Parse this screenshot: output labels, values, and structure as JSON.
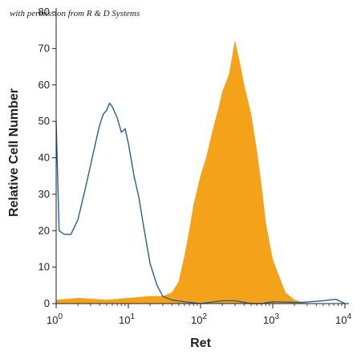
{
  "credit_text": "with permission from R & D Systems",
  "chart_data": {
    "type": "area",
    "title": "",
    "xlabel": "Ret",
    "ylabel": "Relative Cell Number",
    "x_scale": "log",
    "xlim": [
      1,
      10000
    ],
    "ylim": [
      0,
      80
    ],
    "grid": false,
    "x_ticks": [
      {
        "value": 1,
        "base": "10",
        "exp": "0"
      },
      {
        "value": 10,
        "base": "10",
        "exp": "1"
      },
      {
        "value": 100,
        "base": "10",
        "exp": "2"
      },
      {
        "value": 1000,
        "base": "10",
        "exp": "3"
      },
      {
        "value": 10000,
        "base": "10",
        "exp": "4"
      }
    ],
    "y_ticks": [
      {
        "value": 0,
        "label": "0"
      },
      {
        "value": 10,
        "label": "10"
      },
      {
        "value": 20,
        "label": "20"
      },
      {
        "value": 30,
        "label": "30"
      },
      {
        "value": 40,
        "label": "40"
      },
      {
        "value": 50,
        "label": "50"
      },
      {
        "value": 60,
        "label": "60"
      },
      {
        "value": 70,
        "label": "70"
      },
      {
        "value": 80,
        "label": "80"
      }
    ],
    "series": [
      {
        "style": "outline",
        "color": "#2a5f8f",
        "x": [
          1,
          1.1,
          1.3,
          1.6,
          2,
          2.5,
          3,
          3.5,
          4,
          4.5,
          5,
          5.5,
          6,
          7,
          8,
          9,
          10,
          12,
          14,
          16,
          20,
          25,
          30,
          40,
          60,
          100,
          200,
          300,
          500,
          700,
          1000,
          2500,
          5000,
          7500,
          10000
        ],
        "y": [
          50,
          20,
          19,
          19,
          23,
          31,
          38,
          44,
          49,
          52,
          53,
          55,
          54,
          51,
          47,
          48,
          44,
          35,
          29,
          22,
          11,
          5,
          2,
          1,
          0.5,
          0,
          0.8,
          0.8,
          0,
          0,
          0.5,
          0.3,
          0.8,
          1.2,
          0
        ]
      },
      {
        "style": "filled",
        "color": "#f5a21b",
        "x": [
          1,
          2,
          5,
          10,
          20,
          30,
          40,
          50,
          60,
          70,
          80,
          100,
          120,
          150,
          180,
          200,
          250,
          300,
          350,
          400,
          500,
          600,
          700,
          800,
          1000,
          1500,
          2000,
          3000,
          10000
        ],
        "y": [
          1,
          1.5,
          1,
          1.5,
          2,
          2,
          3,
          6,
          13,
          20,
          27,
          35,
          40,
          48,
          54,
          58,
          63,
          72,
          66,
          60,
          52,
          42,
          32,
          22,
          12,
          3,
          1,
          0,
          0
        ]
      }
    ]
  }
}
